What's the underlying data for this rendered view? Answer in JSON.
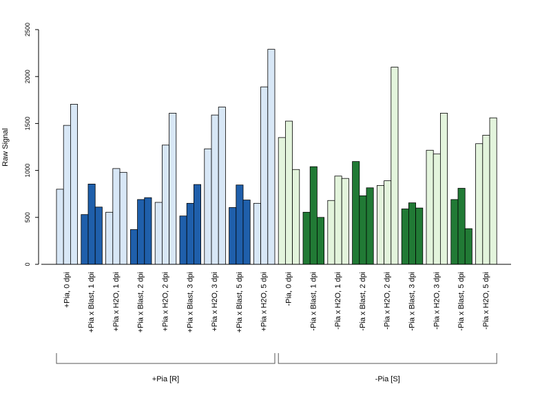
{
  "chart_data": {
    "type": "bar",
    "title": "",
    "xlabel": "",
    "ylabel": "Raw Signal",
    "ylim": [
      0,
      2500
    ],
    "yticks": [
      "0",
      "500",
      "1000",
      "1500",
      "2000",
      "2500"
    ],
    "grid": false,
    "legend": "none",
    "categories": [
      "+Pia, 0 dpi",
      "+Pia x Blast, 1 dpi",
      "+Pia x H2O, 1 dpi",
      "+Pia x Blast, 2 dpi",
      "+Pia x H2O, 2 dpi",
      "+Pia x Blast, 3 dpi",
      "+Pia x H2O, 3 dpi",
      "+Pia x Blast, 5 dpi",
      "+Pia x H2O, 5 dpi",
      "-Pia, 0 dpi",
      "-Pia x Blast, 1 dpi",
      "-Pia x H2O, 1 dpi",
      "-Pia x Blast, 2 dpi",
      "-Pia x H2O, 2 dpi",
      "-Pia x Blast, 3 dpi",
      "-Pia x H2O, 3 dpi",
      "-Pia x Blast, 5 dpi",
      "-Pia x H2O, 5 dpi"
    ],
    "replicates": [
      [
        800,
        1480,
        1705
      ],
      [
        530,
        855,
        610
      ],
      [
        555,
        1020,
        980
      ],
      [
        370,
        690,
        710
      ],
      [
        660,
        1270,
        1610
      ],
      [
        515,
        650,
        850
      ],
      [
        1230,
        1590,
        1675
      ],
      [
        605,
        845,
        685
      ],
      [
        650,
        1890,
        2290
      ],
      [
        1350,
        1525,
        1010
      ],
      [
        555,
        1040,
        500
      ],
      [
        680,
        940,
        915
      ],
      [
        1095,
        730,
        815
      ],
      [
        840,
        890,
        2100
      ],
      [
        590,
        655,
        600
      ],
      [
        1215,
        1175,
        1610
      ],
      [
        690,
        810,
        380
      ],
      [
        1285,
        1375,
        1560
      ]
    ],
    "bar_colors": [
      "#d8e7f6",
      "#1f5fab",
      "#d8e7f6",
      "#1f5fab",
      "#d8e7f6",
      "#1f5fab",
      "#d8e7f6",
      "#1f5fab",
      "#d8e7f6",
      "#e3f4dc",
      "#217a35",
      "#e3f4dc",
      "#217a35",
      "#e3f4dc",
      "#217a35",
      "#e3f4dc",
      "#217a35",
      "#e3f4dc"
    ],
    "groups": [
      {
        "label": "+Pia [R]",
        "from": 0,
        "to": 8
      },
      {
        "label": "-Pia [S]",
        "from": 9,
        "to": 17
      }
    ]
  }
}
